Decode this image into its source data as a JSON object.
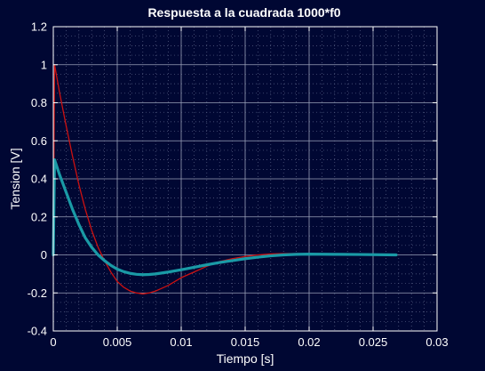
{
  "chart_data": {
    "type": "line",
    "title": "Respuesta a la cuadrada 1000*f0",
    "xlabel": "Tiempo [s]",
    "ylabel": "Tension [V]",
    "xlim": [
      0,
      0.03
    ],
    "ylim": [
      -0.4,
      1.2
    ],
    "xticks": [
      0,
      0.005,
      0.01,
      0.015,
      0.02,
      0.025,
      0.03
    ],
    "xtick_labels": [
      "0",
      "0.005",
      "0.01",
      "0.015",
      "0.02",
      "0.025",
      "0.03"
    ],
    "yticks": [
      -0.4,
      -0.2,
      0,
      0.2,
      0.4,
      0.6,
      0.8,
      1,
      1.2
    ],
    "ytick_labels": [
      "-0.4",
      "-0.2",
      "0",
      "0.2",
      "0.4",
      "0.6",
      "0.8",
      "1",
      "1.2"
    ],
    "grid": true,
    "minor_grid": true,
    "series": [
      {
        "color": "#cc1111",
        "x": [
          0,
          0.0001,
          0.0005,
          0.001,
          0.0015,
          0.002,
          0.0025,
          0.003,
          0.0035,
          0.004,
          0.0045,
          0.005,
          0.0055,
          0.006,
          0.0065,
          0.007,
          0.0075,
          0.008,
          0.0085,
          0.009,
          0.0095,
          0.01,
          0.011,
          0.012,
          0.013,
          0.014,
          0.015,
          0.016,
          0.017,
          0.018,
          0.019,
          0.02,
          0.0215
        ],
        "y": [
          0,
          1.0,
          0.85,
          0.68,
          0.52,
          0.37,
          0.24,
          0.13,
          0.04,
          -0.03,
          -0.09,
          -0.14,
          -0.17,
          -0.19,
          -0.2,
          -0.205,
          -0.2,
          -0.19,
          -0.175,
          -0.16,
          -0.14,
          -0.12,
          -0.09,
          -0.06,
          -0.035,
          -0.02,
          -0.008,
          0.0,
          0.005,
          0.007,
          0.007,
          0.006,
          0.005
        ]
      },
      {
        "color": "#1a9aa6",
        "x": [
          0,
          0.0001,
          0.0005,
          0.001,
          0.0015,
          0.002,
          0.0025,
          0.003,
          0.0035,
          0.004,
          0.0045,
          0.005,
          0.0055,
          0.006,
          0.0065,
          0.007,
          0.0075,
          0.008,
          0.009,
          0.01,
          0.011,
          0.012,
          0.013,
          0.014,
          0.015,
          0.016,
          0.017,
          0.018,
          0.019,
          0.02,
          0.022,
          0.024,
          0.0268
        ],
        "y": [
          0,
          0.5,
          0.42,
          0.33,
          0.24,
          0.16,
          0.09,
          0.04,
          0.0,
          -0.03,
          -0.055,
          -0.075,
          -0.088,
          -0.097,
          -0.102,
          -0.104,
          -0.103,
          -0.1,
          -0.09,
          -0.078,
          -0.065,
          -0.052,
          -0.04,
          -0.03,
          -0.02,
          -0.012,
          -0.005,
          0.0,
          0.003,
          0.004,
          0.003,
          0.002,
          0.0
        ]
      }
    ]
  }
}
